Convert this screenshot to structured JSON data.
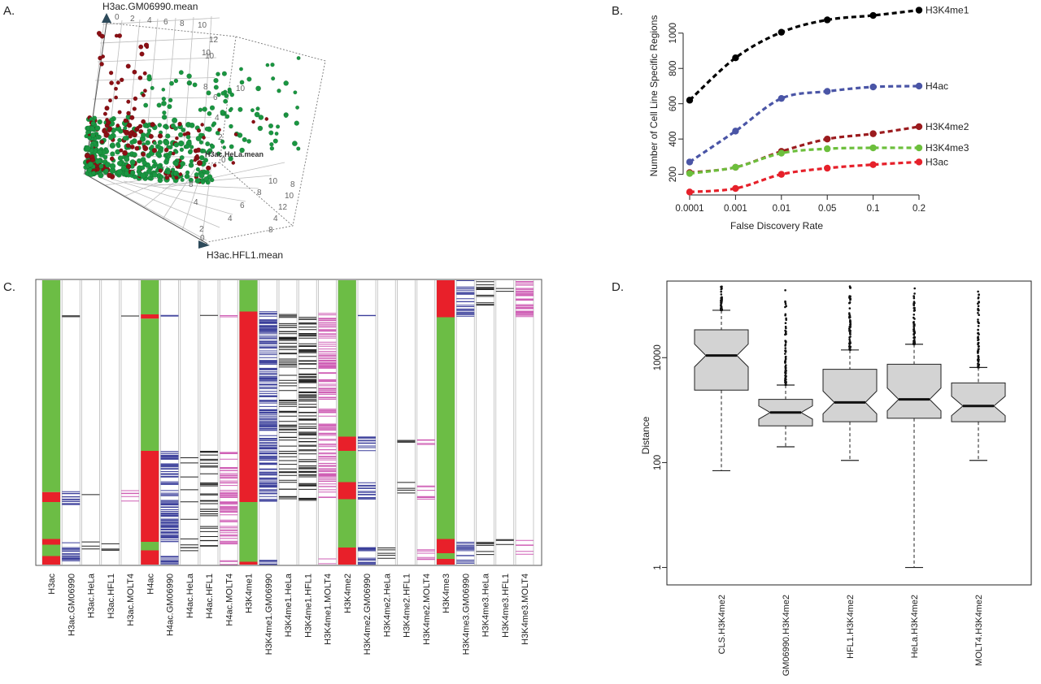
{
  "panels": {
    "a": "A.",
    "b": "B.",
    "c": "C.",
    "d": "D."
  },
  "chart_data": [
    {
      "panel": "A",
      "type": "scatter",
      "axis_labels": {
        "z": "H3ac.GM06990.mean",
        "y": "H3ac.HeLa.mean",
        "x": "H3ac.HFL1.mean"
      },
      "tick_labels": [
        "0",
        "2",
        "4",
        "6",
        "8",
        "10",
        "12"
      ],
      "series": [
        {
          "color": "#1a9641"
        },
        {
          "color": "#8b0f14"
        }
      ]
    },
    {
      "panel": "B",
      "type": "line",
      "title": "",
      "xlabel": "False Discovery Rate",
      "ylabel": "Number of Cell Line Specific Regions",
      "categories": [
        "0.0001",
        "0.001",
        "0.01",
        "0.05",
        "0.1",
        "0.2"
      ],
      "yticks": [
        200,
        400,
        600,
        800,
        1000
      ],
      "ylim": [
        120,
        1160
      ],
      "series": [
        {
          "name": "H3K4me1",
          "color": "#000000",
          "values": [
            620,
            860,
            1005,
            1075,
            1100,
            1130
          ]
        },
        {
          "name": "H4ac",
          "color": "#4a55a6",
          "values": [
            270,
            445,
            630,
            670,
            695,
            700
          ]
        },
        {
          "name": "H3K4me2",
          "color": "#9b1b1e",
          "values": [
            210,
            240,
            330,
            400,
            430,
            470
          ]
        },
        {
          "name": "H3K4me3",
          "color": "#6cbf3c",
          "values": [
            205,
            240,
            320,
            345,
            350,
            350
          ]
        },
        {
          "name": "H3ac",
          "color": "#e6202a",
          "values": [
            100,
            120,
            200,
            235,
            255,
            270
          ]
        }
      ]
    },
    {
      "panel": "C",
      "type": "heatmap",
      "columns": [
        "H3ac",
        "H3ac.GM06990",
        "H3ac.HeLa",
        "H3ac.HFL1",
        "H3ac.MOLT4",
        "H4ac",
        "H4ac.GM06990",
        "H4ac.HeLa",
        "H4ac.HFL1",
        "H4ac.MOLT4",
        "H3K4me1",
        "H3K4me1.GM06990",
        "H3K4me1.HeLa",
        "H3K4me1.HFL1",
        "H3K4me1.MOLT4",
        "H3K4me2",
        "H3K4me2.GM06990",
        "H3K4me2.HeLa",
        "H3K4me2.HFL1",
        "H3K4me2.MOLT4",
        "H3K4me3",
        "H3K4me3.GM06990",
        "H3K4me3.HeLa",
        "H3K4me3.HFL1",
        "H3K4me3.MOLT4"
      ],
      "colors": {
        "green": "#6cbd45",
        "red": "#e8202a",
        "blue": "#3a3e9a",
        "black": "#222222",
        "pink": "#cf5fb5"
      }
    },
    {
      "panel": "D",
      "type": "box",
      "ylabel": "Distance",
      "yscale": "log",
      "yticks": [
        1,
        100,
        10000
      ],
      "ylim": [
        0.5,
        250000
      ],
      "categories": [
        "CLS.H3K4me2",
        "GM06990.H3K4me2",
        "HFL1.H3K4me2",
        "HeLa.H3K4me2",
        "MOLT4.H3K4me2"
      ],
      "boxes": [
        {
          "min": 70,
          "q1": 2400,
          "median": 11000,
          "q3": 34000,
          "max": 80000,
          "outlier_max": 400000
        },
        {
          "min": 200,
          "q1": 500,
          "median": 900,
          "q3": 1600,
          "max": 3000,
          "outlier_max": 200000
        },
        {
          "min": 110,
          "q1": 600,
          "median": 1400,
          "q3": 6000,
          "max": 14000,
          "outlier_max": 230000
        },
        {
          "min": 1,
          "q1": 700,
          "median": 1600,
          "q3": 7500,
          "max": 18000,
          "outlier_max": 230000
        },
        {
          "min": 110,
          "q1": 600,
          "median": 1200,
          "q3": 3300,
          "max": 6500,
          "outlier_max": 230000
        }
      ]
    }
  ]
}
